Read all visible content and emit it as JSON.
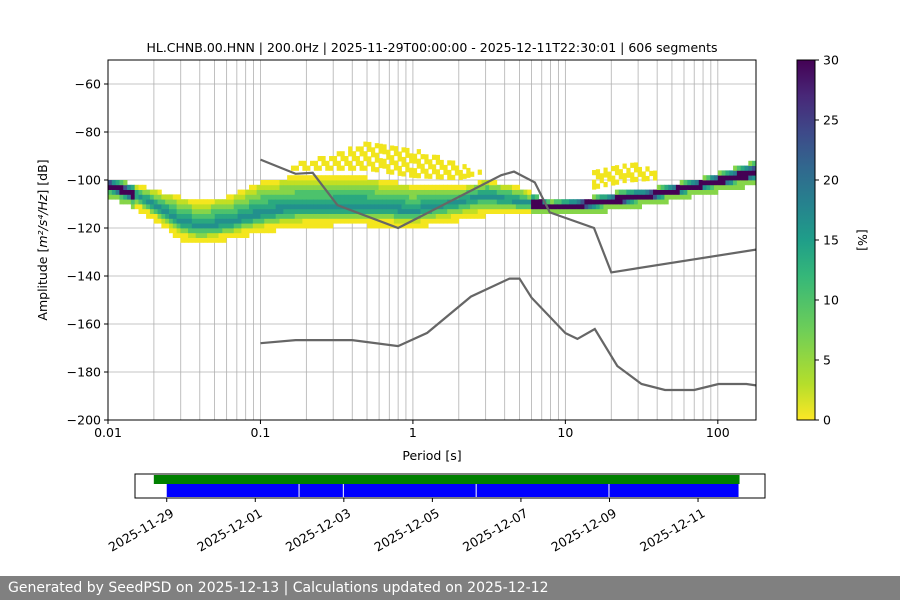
{
  "chart_data": {
    "type": "heatmap",
    "title": "HL.CHNB.00.HNN | 200.0Hz | 2025-11-29T00:00:00 - 2025-12-11T22:30:01 | 606 segments",
    "xlabel": "Period [s]",
    "ylabel_main": "Amplitude [",
    "ylabel_math": "m²/s⁴/Hz",
    "ylabel_tail": "] [dB]",
    "xscale": "log",
    "xlim": [
      0.01,
      178
    ],
    "ylim": [
      -200,
      -50
    ],
    "xticks": [
      {
        "value": 0.01,
        "label": "0.01"
      },
      {
        "value": 0.1,
        "label": "0.1"
      },
      {
        "value": 1,
        "label": "1"
      },
      {
        "value": 10,
        "label": "10"
      },
      {
        "value": 100,
        "label": "100"
      }
    ],
    "yticks": [
      {
        "value": -60,
        "label": "−60"
      },
      {
        "value": -80,
        "label": "−80"
      },
      {
        "value": -100,
        "label": "−100"
      },
      {
        "value": -120,
        "label": "−120"
      },
      {
        "value": -140,
        "label": "−140"
      },
      {
        "value": -160,
        "label": "−160"
      },
      {
        "value": -180,
        "label": "−180"
      },
      {
        "value": -200,
        "label": "−200"
      }
    ],
    "grid": true,
    "colorbar": {
      "label": "[%]",
      "min": 0,
      "max": 30,
      "ticks": [
        {
          "value": 0,
          "label": "0"
        },
        {
          "value": 5,
          "label": "5"
        },
        {
          "value": 10,
          "label": "10"
        },
        {
          "value": 15,
          "label": "15"
        },
        {
          "value": 20,
          "label": "20"
        },
        {
          "value": 25,
          "label": "25"
        },
        {
          "value": 30,
          "label": "30"
        }
      ],
      "colormap": "viridis_r"
    },
    "psd_band": [
      {
        "period": 0.01,
        "mode": -103,
        "low": -106,
        "high": -100,
        "extra_high": null
      },
      {
        "period": 0.015,
        "mode": -107,
        "low": -111,
        "high": -103,
        "extra_high": null
      },
      {
        "period": 0.02,
        "mode": -111,
        "low": -116,
        "high": -105,
        "extra_high": null
      },
      {
        "period": 0.03,
        "mode": -118,
        "low": -124,
        "high": -108,
        "extra_high": null
      },
      {
        "period": 0.04,
        "mode": -120,
        "low": -126,
        "high": -110,
        "extra_high": null
      },
      {
        "period": 0.06,
        "mode": -119,
        "low": -124,
        "high": -108,
        "extra_high": null
      },
      {
        "period": 0.1,
        "mode": -115,
        "low": -121,
        "high": -102,
        "extra_high": null
      },
      {
        "period": 0.15,
        "mode": -113,
        "low": -119,
        "high": -100,
        "extra_high": -95
      },
      {
        "period": 0.3,
        "mode": -112,
        "low": -118,
        "high": -100,
        "extra_high": -90
      },
      {
        "period": 0.5,
        "mode": -112,
        "low": -118,
        "high": -100,
        "extra_high": -85
      },
      {
        "period": 1.0,
        "mode": -114,
        "low": -119,
        "high": -103,
        "extra_high": -88
      },
      {
        "period": 2.0,
        "mode": -110,
        "low": -116,
        "high": -104,
        "extra_high": -94
      },
      {
        "period": 3.0,
        "mode": -107,
        "low": -114,
        "high": -101,
        "extra_high": -98
      },
      {
        "period": 5.0,
        "mode": -110,
        "low": -114,
        "high": -104,
        "extra_high": null
      },
      {
        "period": 8.0,
        "mode": -112,
        "low": -114,
        "high": -110,
        "extra_high": null
      },
      {
        "period": 15.0,
        "mode": -111,
        "low": -113,
        "high": -108,
        "extra_high": -98
      },
      {
        "period": 25.0,
        "mode": -109,
        "low": -111,
        "high": -105,
        "extra_high": -93
      },
      {
        "period": 40.0,
        "mode": -107,
        "low": -109,
        "high": -104,
        "extra_high": -97
      },
      {
        "period": 80.0,
        "mode": -103,
        "low": -105,
        "high": -100,
        "extra_high": null
      },
      {
        "period": 178.0,
        "mode": -98,
        "low": -101,
        "high": -93,
        "extra_high": null
      }
    ],
    "noise_models": [
      {
        "name": "",
        "x": [
          0.1,
          0.17,
          0.22,
          0.32,
          0.8,
          3.8,
          4.6,
          6.3,
          7.9,
          15.4,
          20.0,
          178.0
        ],
        "y": [
          -91.5,
          -97.4,
          -97.0,
          -110.5,
          -120.0,
          -98.0,
          -96.5,
          -101.0,
          -113.5,
          -120.0,
          -138.5,
          -129.0
        ]
      },
      {
        "name": "",
        "x": [
          0.1,
          0.17,
          0.4,
          0.8,
          1.24,
          2.4,
          4.3,
          5.0,
          6.0,
          10.0,
          12.0,
          15.6,
          21.9,
          31.6,
          45.0,
          70.0,
          101.0,
          154.0,
          178.0
        ],
        "y": [
          -168.0,
          -166.7,
          -166.7,
          -169.2,
          -163.7,
          -148.6,
          -141.1,
          -141.1,
          -149.0,
          -163.8,
          -166.2,
          -162.1,
          -177.5,
          -185.0,
          -187.5,
          -187.5,
          -185.0,
          -185.0,
          -185.6
        ]
      }
    ],
    "timeline": {
      "start": "2025-11-29T00:00:00",
      "end": "2025-12-11T22:30:01",
      "tick_dates": [
        "2025-11-29",
        "2025-12-01",
        "2025-12-03",
        "2025-12-05",
        "2025-12-07",
        "2025-12-09",
        "2025-12-11"
      ],
      "green_bar": {
        "start": "2025-11-28T17:00:00",
        "end": "2025-12-11T22:30:01",
        "color": "#008000"
      },
      "blue_segments": [
        {
          "start": "2025-11-29T00:00:00",
          "end": "2025-12-02T00:00:00"
        },
        {
          "start": "2025-12-02T00:00:00",
          "end": "2025-12-03T00:00:00"
        },
        {
          "start": "2025-12-03T00:00:00",
          "end": "2025-12-06T00:00:00"
        },
        {
          "start": "2025-12-06T00:00:00",
          "end": "2025-12-09T00:00:00"
        },
        {
          "start": "2025-12-09T00:00:00",
          "end": "2025-12-11T22:30:01"
        }
      ],
      "blue_color": "#0000ff"
    }
  },
  "footer": {
    "text": "Generated by SeedPSD on 2025-12-13 | Calculations updated on 2025-12-12"
  }
}
